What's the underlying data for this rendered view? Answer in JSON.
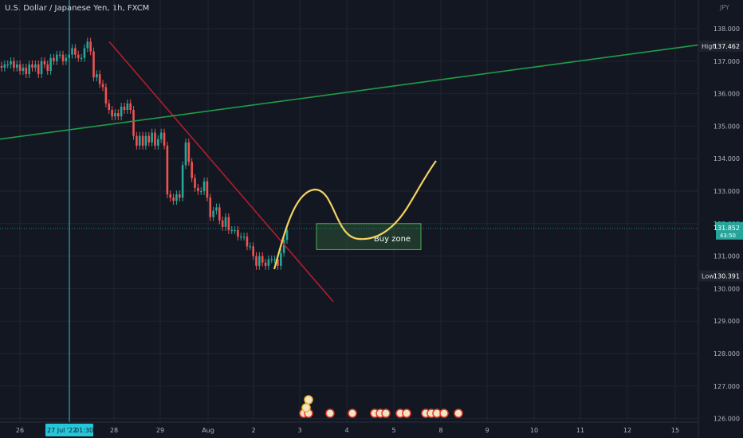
{
  "header": {
    "title": "U.S. Dollar / Japanese Yen, 1h, FXCM",
    "currency": "JPY"
  },
  "chart_data": {
    "type": "candlestick",
    "instrument": "U.S. Dollar / Japanese Yen",
    "interval": "1h",
    "source": "FXCM",
    "ylim": [
      125.8,
      139.2
    ],
    "x_ticks": [
      "26",
      "27 Jul '22",
      "01:30",
      "28",
      "29",
      "Aug",
      "2",
      "3",
      "4",
      "5",
      "8",
      "9",
      "10",
      "11",
      "12",
      "15"
    ],
    "y_ticks": [
      "126.000",
      "127.000",
      "128.000",
      "129.000",
      "130.000",
      "131.000",
      "132.000",
      "133.000",
      "134.000",
      "135.000",
      "136.000",
      "137.000",
      "138.000"
    ],
    "price_labels": [
      {
        "name": "High",
        "value": "137.462",
        "color": "#1e222d"
      },
      {
        "name": "Last",
        "value": "131.852",
        "sub": "43:50",
        "color": "#26a69a"
      },
      {
        "name": "Low",
        "value": "130.391",
        "color": "#1e222d"
      }
    ],
    "last_price": 131.852,
    "crosshair_label": "27 Jul '22 01:30",
    "candles": {
      "colors": {
        "up": "#26a69a",
        "down": "#ef5350"
      },
      "close": [
        136.8,
        136.9,
        136.9,
        137.0,
        136.8,
        136.9,
        136.7,
        136.8,
        136.6,
        136.9,
        136.8,
        136.9,
        136.6,
        137.0,
        136.9,
        136.7,
        137.1,
        137.0,
        137.2,
        137.2,
        137.0,
        137.1,
        137.2,
        137.4,
        137.2,
        137.1,
        137.1,
        137.4,
        137.6,
        137.3,
        136.5,
        136.6,
        136.3,
        136.2,
        135.7,
        135.5,
        135.3,
        135.4,
        135.3,
        135.6,
        135.5,
        135.7,
        135.5,
        134.7,
        134.4,
        134.7,
        134.4,
        134.7,
        134.5,
        134.8,
        134.4,
        134.6,
        134.8,
        134.4,
        132.9,
        132.8,
        132.7,
        132.9,
        132.8,
        133.8,
        134.5,
        133.9,
        133.4,
        133.1,
        133.0,
        133.0,
        133.3,
        132.8,
        132.2,
        132.4,
        132.5,
        132.1,
        131.9,
        132.2,
        131.8,
        131.8,
        131.8,
        131.6,
        131.6,
        131.6,
        131.3,
        131.3,
        131.0,
        130.7,
        131.0,
        130.8,
        130.7,
        130.9,
        130.9,
        130.9,
        130.7,
        131.1,
        131.5,
        131.8
      ]
    },
    "trendlines": [
      {
        "name": "descending resistance",
        "color": "#b21d2a",
        "from": [
          "28",
          137.6
        ],
        "to": [
          "3",
          129.6
        ]
      },
      {
        "name": "ascending support",
        "color": "#1e9e46",
        "from": [
          "26",
          134.6
        ],
        "to": [
          "15",
          137.5
        ]
      }
    ],
    "projection": {
      "name": "projected path",
      "color": "#f4d35e"
    },
    "zone": {
      "label": "Buy zone",
      "top": 132.0,
      "bottom": 131.2,
      "color": "#4caf50"
    },
    "events": {
      "count": 17
    }
  }
}
